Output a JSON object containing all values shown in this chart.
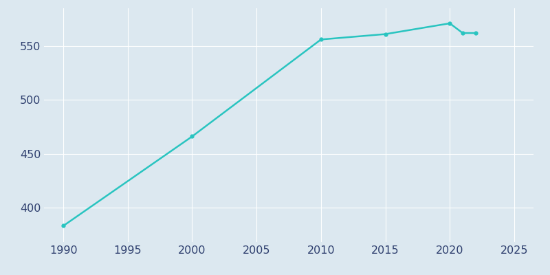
{
  "years": [
    1990,
    2000,
    2010,
    2015,
    2020,
    2021,
    2022
  ],
  "population": [
    383,
    466,
    556,
    561,
    571,
    562,
    562
  ],
  "line_color": "#29C4C0",
  "marker": "o",
  "marker_size": 3.5,
  "line_width": 1.8,
  "background_color": "#dce8f0",
  "axes_background_color": "#dce8f0",
  "grid_color": "#ffffff",
  "xlim": [
    1988.5,
    2026.5
  ],
  "ylim": [
    368,
    585
  ],
  "xticks": [
    1990,
    1995,
    2000,
    2005,
    2010,
    2015,
    2020,
    2025
  ],
  "yticks": [
    400,
    450,
    500,
    550
  ],
  "tick_label_color": "#2e3f6e",
  "tick_fontsize": 11.5
}
